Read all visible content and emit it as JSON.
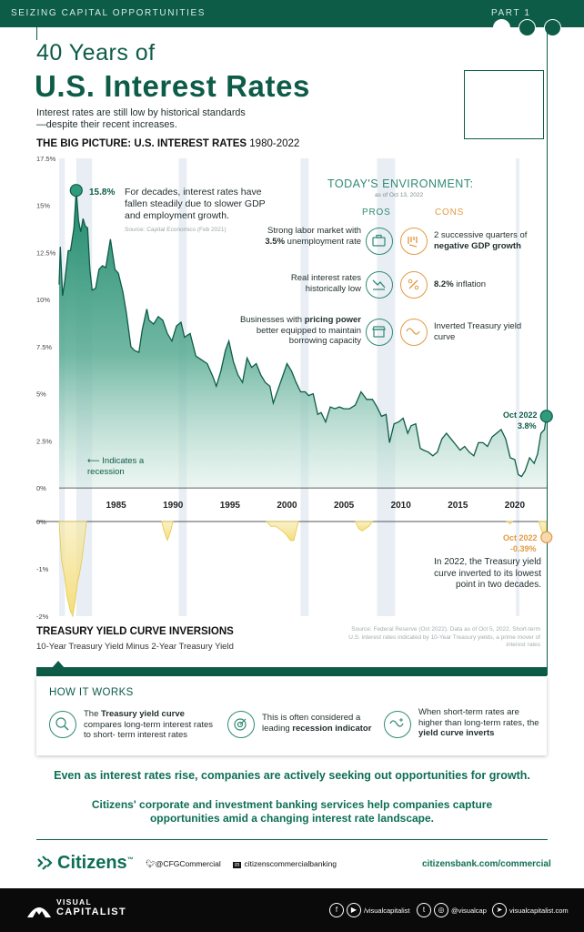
{
  "header": {
    "kicker": "SEIZING CAPITAL OPPORTUNITIES",
    "part": "PART 1"
  },
  "title": {
    "line1": "40 Years of",
    "line2": "U.S. Interest Rates",
    "subtitle": "Interest rates are still low by historical standards—despite their recent increases."
  },
  "big_picture": {
    "label": "THE BIG PICTURE: U.S. INTEREST RATES",
    "years": "1980-2022"
  },
  "annotations": {
    "peak_value": "15.8%",
    "peak_text": "For decades, interest rates have fallen steadily due to slower GDP and employment growth.",
    "peak_source": "Source: Capital Economics (Feb 2021)",
    "recession_label": "Indicates a recession",
    "oct_label": "Oct 2022",
    "oct_value": "3.8%",
    "inv_label": "Oct 2022",
    "inv_value": "-0.39%",
    "inv_text": "In 2022, the Treasury yield curve inverted to its lowest point in two decades."
  },
  "environment": {
    "title": "TODAY'S ENVIRONMENT:",
    "asof": "as of Oct 13, 2022",
    "pros_label": "PROS",
    "cons_label": "CONS",
    "pros": [
      {
        "pre": "Strong labor market with ",
        "bold": "3.5%",
        "post": " unemployment rate",
        "icon": "briefcase-icon"
      },
      {
        "pre": "Real interest rates historically low",
        "bold": "",
        "post": "",
        "icon": "trending-down-icon"
      },
      {
        "pre": "Businesses with ",
        "bold": "pricing power",
        "post": " better equipped to maintain borrowing capacity",
        "icon": "storefront-icon"
      }
    ],
    "cons": [
      {
        "pre": "2 successive quarters of ",
        "bold": "negative GDP growth",
        "post": "",
        "icon": "declining-bars-icon"
      },
      {
        "pre": "",
        "bold": "8.2%",
        "post": " inflation",
        "icon": "percent-arrow-icon"
      },
      {
        "pre": "Inverted Treasury yield curve",
        "bold": "",
        "post": "",
        "icon": "curve-icon"
      }
    ]
  },
  "yield_section": {
    "title": "TREASURY YIELD CURVE INVERSIONS",
    "subtitle": "10-Year Treasury Yield Minus 2-Year Treasury Yield",
    "source": "Source: Federal Reserve (Oct 2022). Data as of Oct 5, 2022. Short-term U.S. interest rates indicated by 10-Year Treasury yields, a prime mover of interest rates"
  },
  "how_it_works": {
    "title": "HOW IT WORKS",
    "items": [
      {
        "pre": "The ",
        "bold": "Treasury yield curve",
        "post": " compares long-term interest rates to short- term interest rates",
        "icon": "magnifier-chart-icon"
      },
      {
        "pre": "This is often considered a leading ",
        "bold": "recession indicator",
        "post": "",
        "icon": "target-icon"
      },
      {
        "pre": "When short-term rates are higher than long-term rates, the ",
        "bold": "yield curve inverts",
        "post": "",
        "icon": "curve-icon"
      }
    ]
  },
  "cta": {
    "line1": "Even as interest rates rise, companies are actively seeking out opportunities for growth.",
    "line2": "Citizens' corporate and investment banking services help companies capture opportunities amid a changing interest rate landscape."
  },
  "brand": {
    "name": "Citizens",
    "twitter": "@CFGCommercial",
    "linkedin": "citizenscommercialbanking",
    "site": "citizensbank.com/commercial"
  },
  "footer": {
    "logo_line1": "VISUAL",
    "logo_line2": "CAPITALIST",
    "handle1": "/visualcapitalist",
    "handle2": "@visualcap",
    "handle3": "visualcapitalist.com"
  },
  "colors": {
    "brand_green": "#0d5c48",
    "area_green": "#1f8a6d",
    "recession": "#e8eef4",
    "inversion": "#f3dc72",
    "orange": "#e39a43"
  },
  "chart_data": [
    {
      "type": "area",
      "title": "THE BIG PICTURE: U.S. INTEREST RATES 1980-2022",
      "xlabel": "",
      "ylabel": "",
      "unit": "%",
      "xlim": [
        1980,
        2022.8
      ],
      "ylim": [
        0,
        17.5
      ],
      "yticks": [
        "0%",
        "2.5%",
        "5%",
        "7.5%",
        "10%",
        "12.5%",
        "15%",
        "17.5%"
      ],
      "xticks": [
        "1985",
        "1990",
        "1995",
        "2000",
        "2005",
        "2010",
        "2015",
        "2020"
      ],
      "recessions": [
        [
          1980.0,
          1980.5
        ],
        [
          1981.5,
          1982.9
        ],
        [
          1990.5,
          1991.2
        ],
        [
          2001.2,
          2001.9
        ],
        [
          2007.9,
          2009.5
        ],
        [
          2020.1,
          2020.4
        ]
      ],
      "series": [
        {
          "x": [
            1980.0,
            1980.1,
            1980.3,
            1980.5,
            1980.8,
            1981.0,
            1981.3,
            1981.5,
            1981.7,
            1981.9,
            1982.1,
            1982.3,
            1982.5,
            1982.7,
            1982.9,
            1983.2,
            1983.5,
            1983.8,
            1984.1,
            1984.5,
            1984.9,
            1985.2,
            1985.6,
            1985.9,
            1986.3,
            1986.6,
            1987.0,
            1987.3,
            1987.7,
            1987.9,
            1988.3,
            1988.7,
            1989.1,
            1989.5,
            1989.9,
            1990.3,
            1990.7,
            1991.0,
            1991.5,
            1992.0,
            1992.5,
            1993.0,
            1993.5,
            1993.8,
            1994.2,
            1994.6,
            1994.9,
            1995.3,
            1995.7,
            1996.1,
            1996.5,
            1996.9,
            1997.3,
            1997.7,
            1998.1,
            1998.5,
            1998.8,
            1999.2,
            1999.6,
            2000.0,
            2000.4,
            2000.8,
            2001.2,
            2001.6,
            2001.9,
            2002.3,
            2002.7,
            2003.0,
            2003.4,
            2003.8,
            2004.2,
            2004.6,
            2005.0,
            2005.5,
            2006.0,
            2006.5,
            2007.0,
            2007.5,
            2007.9,
            2008.3,
            2008.7,
            2009.0,
            2009.4,
            2009.8,
            2010.2,
            2010.6,
            2010.9,
            2011.3,
            2011.7,
            2012.0,
            2012.4,
            2012.8,
            2013.2,
            2013.6,
            2014.0,
            2014.4,
            2014.8,
            2015.2,
            2015.6,
            2016.0,
            2016.4,
            2016.8,
            2017.2,
            2017.6,
            2018.0,
            2018.4,
            2018.8,
            2019.2,
            2019.6,
            2020.0,
            2020.3,
            2020.6,
            2020.9,
            2021.3,
            2021.7,
            2022.0,
            2022.3,
            2022.6,
            2022.78
          ],
          "y": [
            10.8,
            12.8,
            10.2,
            11.0,
            12.6,
            12.6,
            13.8,
            15.8,
            14.2,
            13.6,
            14.3,
            13.9,
            13.8,
            11.6,
            10.5,
            10.6,
            11.6,
            11.8,
            11.7,
            13.2,
            11.6,
            11.4,
            10.4,
            9.3,
            7.5,
            7.3,
            7.2,
            8.4,
            9.5,
            8.9,
            8.7,
            9.1,
            8.9,
            8.2,
            7.8,
            8.6,
            8.8,
            8.0,
            8.2,
            7.0,
            6.8,
            6.6,
            5.9,
            5.4,
            6.2,
            7.3,
            7.8,
            6.7,
            6.0,
            5.6,
            6.9,
            6.4,
            6.6,
            6.0,
            5.6,
            5.4,
            4.5,
            5.2,
            5.9,
            6.6,
            6.2,
            5.6,
            5.1,
            5.1,
            4.9,
            5.0,
            3.9,
            4.0,
            3.5,
            4.3,
            4.2,
            4.3,
            4.2,
            4.2,
            4.4,
            5.1,
            4.7,
            4.7,
            4.3,
            3.8,
            3.9,
            2.4,
            3.4,
            3.5,
            3.7,
            2.9,
            3.3,
            3.4,
            2.1,
            2.0,
            1.9,
            1.7,
            1.9,
            2.6,
            2.9,
            2.6,
            2.3,
            2.0,
            2.2,
            1.9,
            1.7,
            2.4,
            2.4,
            2.2,
            2.7,
            2.9,
            3.1,
            2.6,
            1.6,
            1.5,
            0.7,
            0.6,
            0.9,
            1.6,
            1.3,
            1.8,
            2.9,
            3.1,
            3.8
          ],
          "start_value": "15.8%",
          "end_value": "3.8%"
        }
      ]
    },
    {
      "type": "area",
      "title": "TREASURY YIELD CURVE INVERSIONS",
      "xlabel": "",
      "ylabel": "",
      "unit": "%",
      "xlim": [
        1980,
        2022.8
      ],
      "ylim": [
        -2,
        0
      ],
      "yticks": [
        "0%",
        "-1%",
        "-2%"
      ],
      "series": [
        {
          "name": "10-Year Treasury Yield Minus 2-Year Treasury Yield (negative periods)",
          "segments": [
            {
              "x": [
                1980.0,
                1980.2,
                1980.5,
                1980.7,
                1981.0,
                1981.2,
                1981.4,
                1981.6,
                1981.8,
                1982.0,
                1982.2,
                1982.4
              ],
              "y": [
                0,
                -0.8,
                -1.2,
                -1.6,
                -1.9,
                -2.0,
                -1.7,
                -1.3,
                -1.1,
                -0.8,
                -0.4,
                0
              ]
            },
            {
              "x": [
                1989.0,
                1989.2,
                1989.5,
                1989.8,
                1990.0
              ],
              "y": [
                0,
                -0.2,
                -0.4,
                -0.2,
                0
              ]
            },
            {
              "x": [
                1998.2,
                1998.6,
                1999.0,
                1999.6,
                2000.0,
                2000.3,
                2000.6,
                2001.0
              ],
              "y": [
                0,
                -0.1,
                -0.1,
                -0.2,
                -0.3,
                -0.4,
                -0.4,
                0
              ]
            },
            {
              "x": [
                2006.0,
                2006.3,
                2006.6,
                2006.9,
                2007.2,
                2007.5
              ],
              "y": [
                0,
                -0.15,
                -0.2,
                -0.15,
                -0.1,
                0
              ]
            },
            {
              "x": [
                2019.3,
                2019.6,
                2019.8
              ],
              "y": [
                0,
                -0.05,
                0
              ]
            },
            {
              "x": [
                2022.1,
                2022.3,
                2022.5,
                2022.78
              ],
              "y": [
                0,
                -0.15,
                -0.3,
                -0.39
              ]
            }
          ],
          "end_value": "-0.39%"
        }
      ]
    }
  ]
}
